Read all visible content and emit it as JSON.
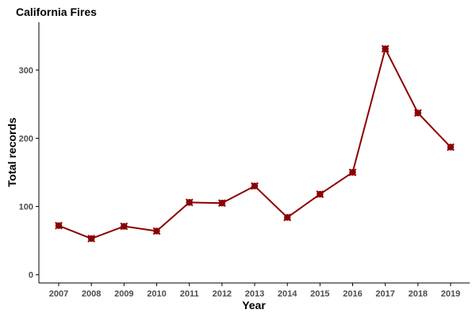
{
  "chart_data": {
    "type": "line",
    "title": "California Fires",
    "xlabel": "Year",
    "ylabel": "Total records",
    "x": [
      "2007",
      "2008",
      "2009",
      "2010",
      "2011",
      "2012",
      "2013",
      "2014",
      "2015",
      "2016",
      "2017",
      "2018",
      "2019"
    ],
    "series": [
      {
        "values": [
          72,
          53,
          71,
          64,
          106,
          105,
          130,
          84,
          118,
          150,
          331,
          237,
          187
        ]
      }
    ],
    "yticks": [
      0,
      100,
      200,
      300
    ],
    "ylim": [
      -12,
      370
    ],
    "grid": false,
    "legend": "none",
    "colors": {
      "series": "#8b0000",
      "axis": "#000000",
      "tick_text": "#4d4d4d"
    }
  }
}
